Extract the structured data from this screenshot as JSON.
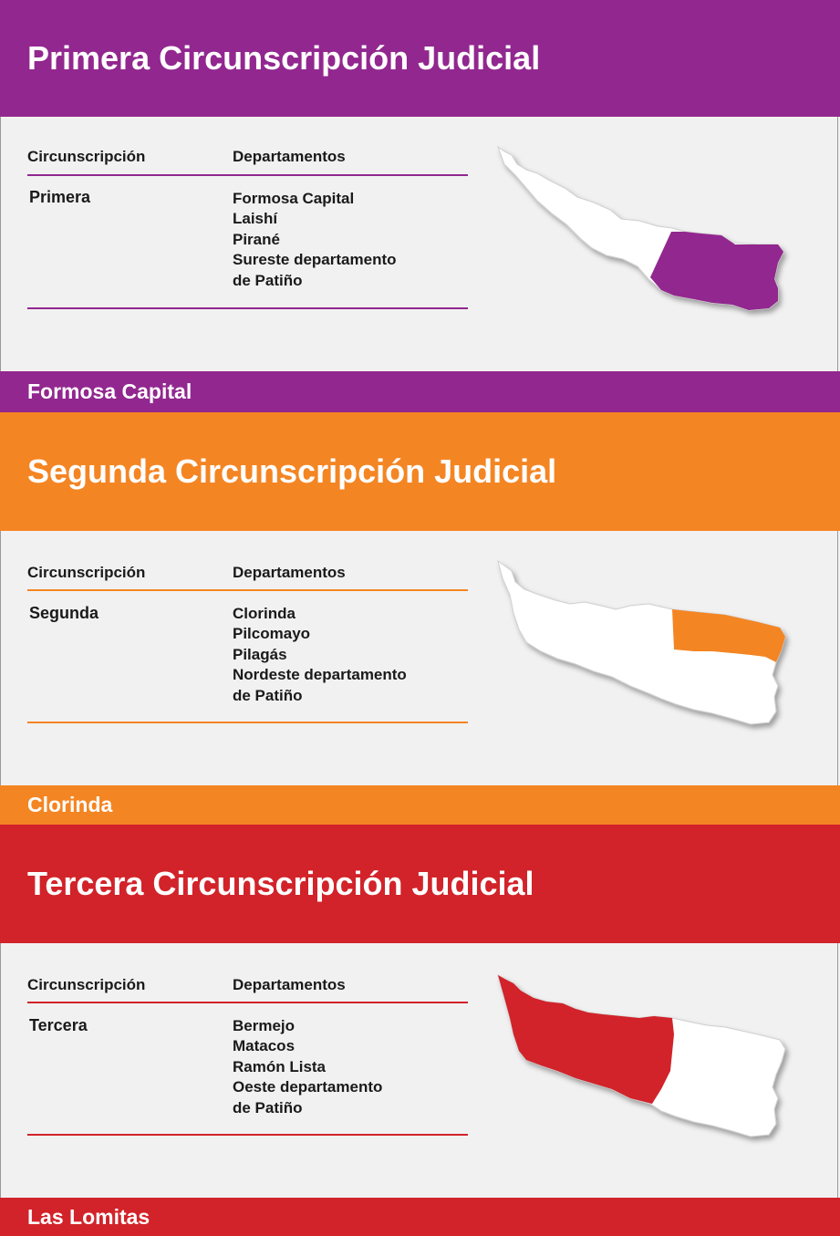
{
  "colors": {
    "primera": "#92278f",
    "segunda": "#f48523",
    "tercera": "#d2232a"
  },
  "sections": [
    {
      "title": "Primera Circunscripción Judicial",
      "col_circ": "Circunscripción",
      "col_dept": "Departamentos",
      "circunscripcion": "Primera",
      "departamentos": [
        "Formosa Capital",
        "Laishí",
        "Pirané",
        "Sureste departamento",
        "de Patiño"
      ],
      "footer": "Formosa Capital",
      "highlight_region": "southeast"
    },
    {
      "title": "Segunda Circunscripción Judicial",
      "col_circ": "Circunscripción",
      "col_dept": "Departamentos",
      "circunscripcion": "Segunda",
      "departamentos": [
        "Clorinda",
        "Pilcomayo",
        "Pilagás",
        "Nordeste departamento",
        "de Patiño"
      ],
      "footer": "Clorinda",
      "highlight_region": "northeast"
    },
    {
      "title": "Tercera Circunscripción Judicial",
      "col_circ": "Circunscripción",
      "col_dept": "Departamentos",
      "circunscripcion": "Tercera",
      "departamentos": [
        "Bermejo",
        "Matacos",
        "Ramón Lista",
        "Oeste departamento",
        "de Patiño"
      ],
      "footer": "Las Lomitas",
      "highlight_region": "west"
    }
  ]
}
